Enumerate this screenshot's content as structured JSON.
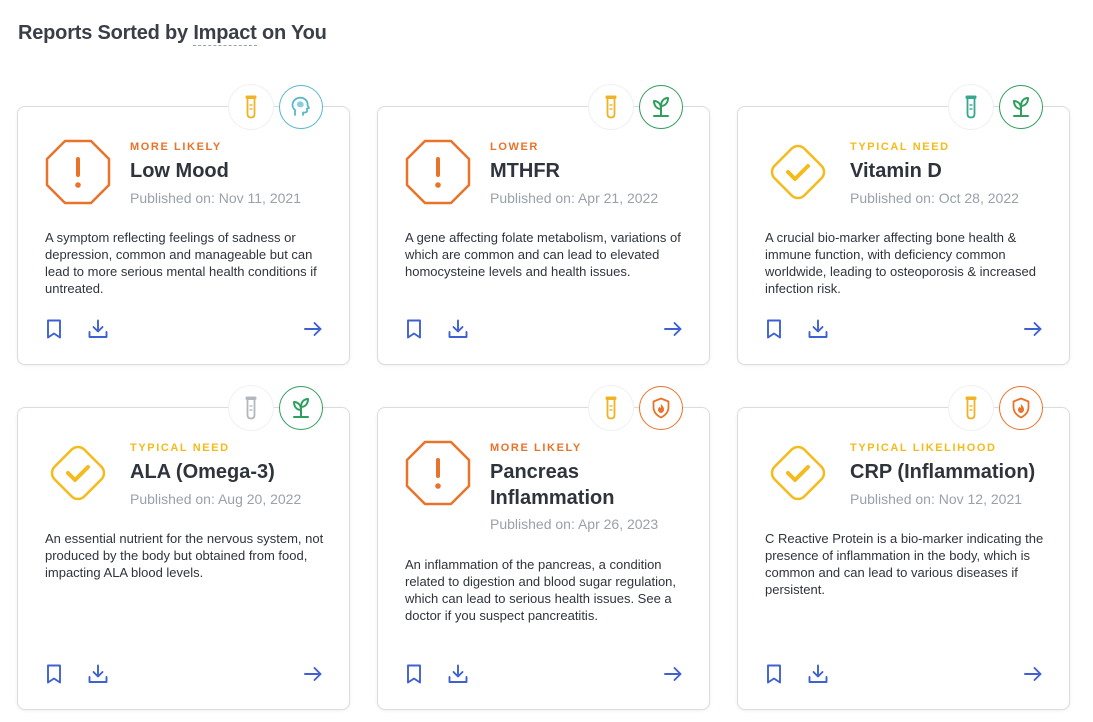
{
  "page": {
    "heading_prefix": "Reports Sorted by ",
    "heading_sort_key": "Impact",
    "heading_suffix": " on You"
  },
  "colors": {
    "orange": "#e8732a",
    "yellow": "#f4bb1b",
    "green": "#2e9f5d",
    "teal": "#57b8cc",
    "blue": "#3f60d0",
    "tube_gold": "#f0b323",
    "tube_teal": "#37a890",
    "tube_gray": "#b3b8be"
  },
  "cards": [
    {
      "likelihood": "MORE LIKELY",
      "title": "Low Mood",
      "published": "Published on: Nov 11, 2021",
      "description": "A symptom reflecting feelings of sadness or depression, common and manageable but can lead to more serious mental health conditions if untreated.",
      "status_icon": "alert-octagon-icon",
      "category_icon": "head-brain-icon"
    },
    {
      "likelihood": "LOWER",
      "title": "MTHFR",
      "published": "Published on: Apr 21, 2022",
      "description": "A gene affecting folate metabolism, variations of which are common and can lead to elevated homocysteine levels and health issues.",
      "status_icon": "alert-octagon-icon",
      "category_icon": "leaf-sprout-icon"
    },
    {
      "likelihood": "TYPICAL NEED",
      "title": "Vitamin D",
      "published": "Published on: Oct 28, 2022",
      "description": "A crucial bio-marker affecting bone health & immune function, with deficiency common worldwide, leading to osteoporosis & increased infection risk.",
      "status_icon": "check-diamond-icon",
      "category_icon": "leaf-sprout-icon"
    },
    {
      "likelihood": "TYPICAL NEED",
      "title": "ALA (Omega-3)",
      "published": "Published on: Aug 20, 2022",
      "description": "An essential nutrient for the nervous system, not produced by the body but obtained from food, impacting ALA blood levels.",
      "status_icon": "check-diamond-icon",
      "category_icon": "leaf-sprout-icon"
    },
    {
      "likelihood": "MORE LIKELY",
      "title": "Pancreas Inflammation",
      "published": "Published on: Apr 26, 2023",
      "description": "An inflammation of the pancreas, a condition related to digestion and blood sugar regulation, which can lead to serious health issues. See a doctor if you suspect pancreatitis.",
      "status_icon": "alert-octagon-icon",
      "category_icon": "shield-flame-icon"
    },
    {
      "likelihood": "TYPICAL LIKELIHOOD",
      "title": "CRP (Inflammation)",
      "published": "Published on: Nov 12, 2021",
      "description": "C Reactive Protein is a bio-marker indicating the presence of inflammation in the body, which is common and can lead to various diseases if persistent.",
      "status_icon": "check-diamond-icon",
      "category_icon": "shield-flame-icon"
    }
  ]
}
